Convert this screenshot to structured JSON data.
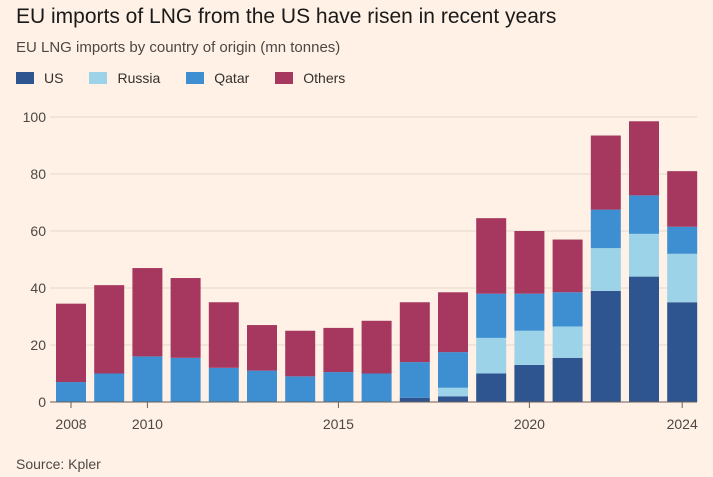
{
  "title": "EU imports of LNG from the US have risen in recent years",
  "subtitle": "EU LNG imports by country of origin (mn tonnes)",
  "source": "Source: Kpler",
  "colors": {
    "background": "#FFF1E5",
    "gridline": "#E3D9CF",
    "axis": "#66605C"
  },
  "chart_data": {
    "type": "bar",
    "stacked": true,
    "x": [
      2008,
      2009,
      2010,
      2011,
      2012,
      2013,
      2014,
      2015,
      2016,
      2017,
      2018,
      2019,
      2020,
      2021,
      2022,
      2023,
      2024
    ],
    "x_tick_labels": [
      "2008",
      "2010",
      "2015",
      "2020",
      "2024"
    ],
    "ylim": [
      0,
      100
    ],
    "y_ticks": [
      0,
      20,
      40,
      60,
      80,
      100
    ],
    "legend_position": "top-left",
    "grid": true,
    "series": [
      {
        "name": "US",
        "color": "#2E5590",
        "values": [
          0,
          0,
          0,
          0,
          0,
          0,
          0,
          0,
          0,
          1.5,
          2,
          10,
          13,
          15.5,
          39,
          44,
          35
        ]
      },
      {
        "name": "Russia",
        "color": "#9DD3E8",
        "values": [
          0,
          0,
          0,
          0,
          0,
          0,
          0,
          0,
          0,
          0,
          3,
          12.5,
          12,
          11,
          15,
          15,
          17
        ]
      },
      {
        "name": "Qatar",
        "color": "#3D8FD1",
        "values": [
          7,
          10,
          16,
          15.5,
          12,
          11,
          9,
          10.5,
          10,
          12.5,
          12.5,
          15.5,
          13,
          12,
          13.5,
          13.5,
          9.5
        ]
      },
      {
        "name": "Others",
        "color": "#A6375F",
        "values": [
          27.5,
          31,
          31,
          28,
          23,
          16,
          16,
          15.5,
          18.5,
          21,
          21,
          26.5,
          22,
          18.5,
          26,
          26,
          19.5
        ]
      }
    ]
  }
}
